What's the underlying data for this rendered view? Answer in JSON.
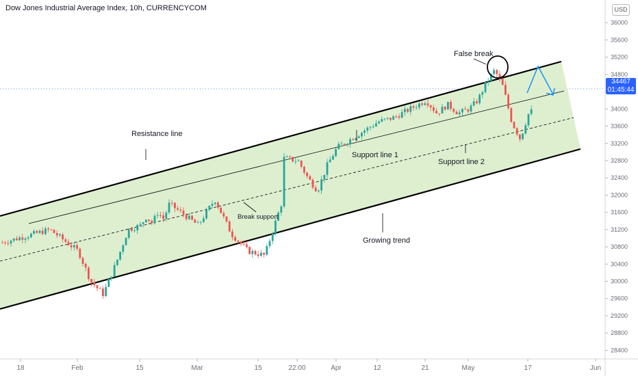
{
  "chart_data": {
    "type": "candlestick",
    "title": "Dow Jones Industrial Average Index, 10h, CURRENCYCOM",
    "currency": "USD",
    "current_price": "34467",
    "countdown": "01:45:44",
    "ylim": [
      28200,
      36400
    ],
    "y_ticks": [
      36000,
      35600,
      35200,
      34800,
      34400,
      34000,
      33600,
      33200,
      32800,
      32400,
      32000,
      31600,
      31200,
      30800,
      30400,
      30000,
      29600,
      29200,
      28800,
      28400
    ],
    "x_ticks": [
      "18",
      "Feb",
      "15",
      "Mar",
      "15",
      "22:00",
      "Apr",
      "12",
      "21",
      "May",
      "17",
      "Jun"
    ],
    "colors": {
      "up": "#26a69a",
      "down": "#ef5350",
      "channel_fill": "#d8ecc8",
      "projection": "#2196f3",
      "price_line": "#2962ff"
    },
    "path_points": [
      [
        30900,
        "18"
      ],
      [
        31200,
        "18"
      ],
      [
        30700,
        "Feb"
      ],
      [
        30000,
        "Feb"
      ],
      [
        29700,
        "Feb"
      ],
      [
        30400,
        "Feb"
      ],
      [
        31200,
        "Feb"
      ],
      [
        31300,
        "15"
      ],
      [
        31500,
        "15"
      ],
      [
        31350,
        "15"
      ],
      [
        31600,
        "15"
      ],
      [
        31450,
        "15"
      ],
      [
        31800,
        "15"
      ],
      [
        31300,
        "Mar"
      ],
      [
        31900,
        "Mar"
      ],
      [
        31100,
        "Mar"
      ],
      [
        30700,
        "Mar"
      ],
      [
        30600,
        "Mar"
      ],
      [
        31800,
        "Mar"
      ],
      [
        32200,
        "15"
      ],
      [
        32800,
        "15"
      ],
      [
        33000,
        "15"
      ],
      [
        33200,
        "15"
      ],
      [
        32800,
        "22:00"
      ],
      [
        32400,
        "22:00"
      ],
      [
        32100,
        "22:00"
      ],
      [
        32700,
        "22:00"
      ],
      [
        33100,
        "Apr"
      ],
      [
        33300,
        "Apr"
      ],
      [
        33500,
        "Apr"
      ],
      [
        33700,
        "12"
      ],
      [
        33800,
        "12"
      ],
      [
        34000,
        "12"
      ],
      [
        34200,
        "21"
      ],
      [
        33900,
        "21"
      ],
      [
        34100,
        "21"
      ],
      [
        33900,
        "21"
      ],
      [
        34000,
        "May"
      ],
      [
        34200,
        "May"
      ],
      [
        34600,
        "May"
      ],
      [
        34900,
        "May"
      ],
      [
        34500,
        "May"
      ],
      [
        33700,
        "May"
      ],
      [
        33300,
        "May"
      ],
      [
        33900,
        "17"
      ],
      [
        34300,
        "17"
      ],
      [
        34467,
        "17"
      ]
    ],
    "annotations": {
      "false_break": "False break",
      "resistance": "Resistance line",
      "support1": "Support line 1",
      "support2": "Support line 2",
      "break_support": "Break support",
      "trend": "Growing trend"
    }
  }
}
